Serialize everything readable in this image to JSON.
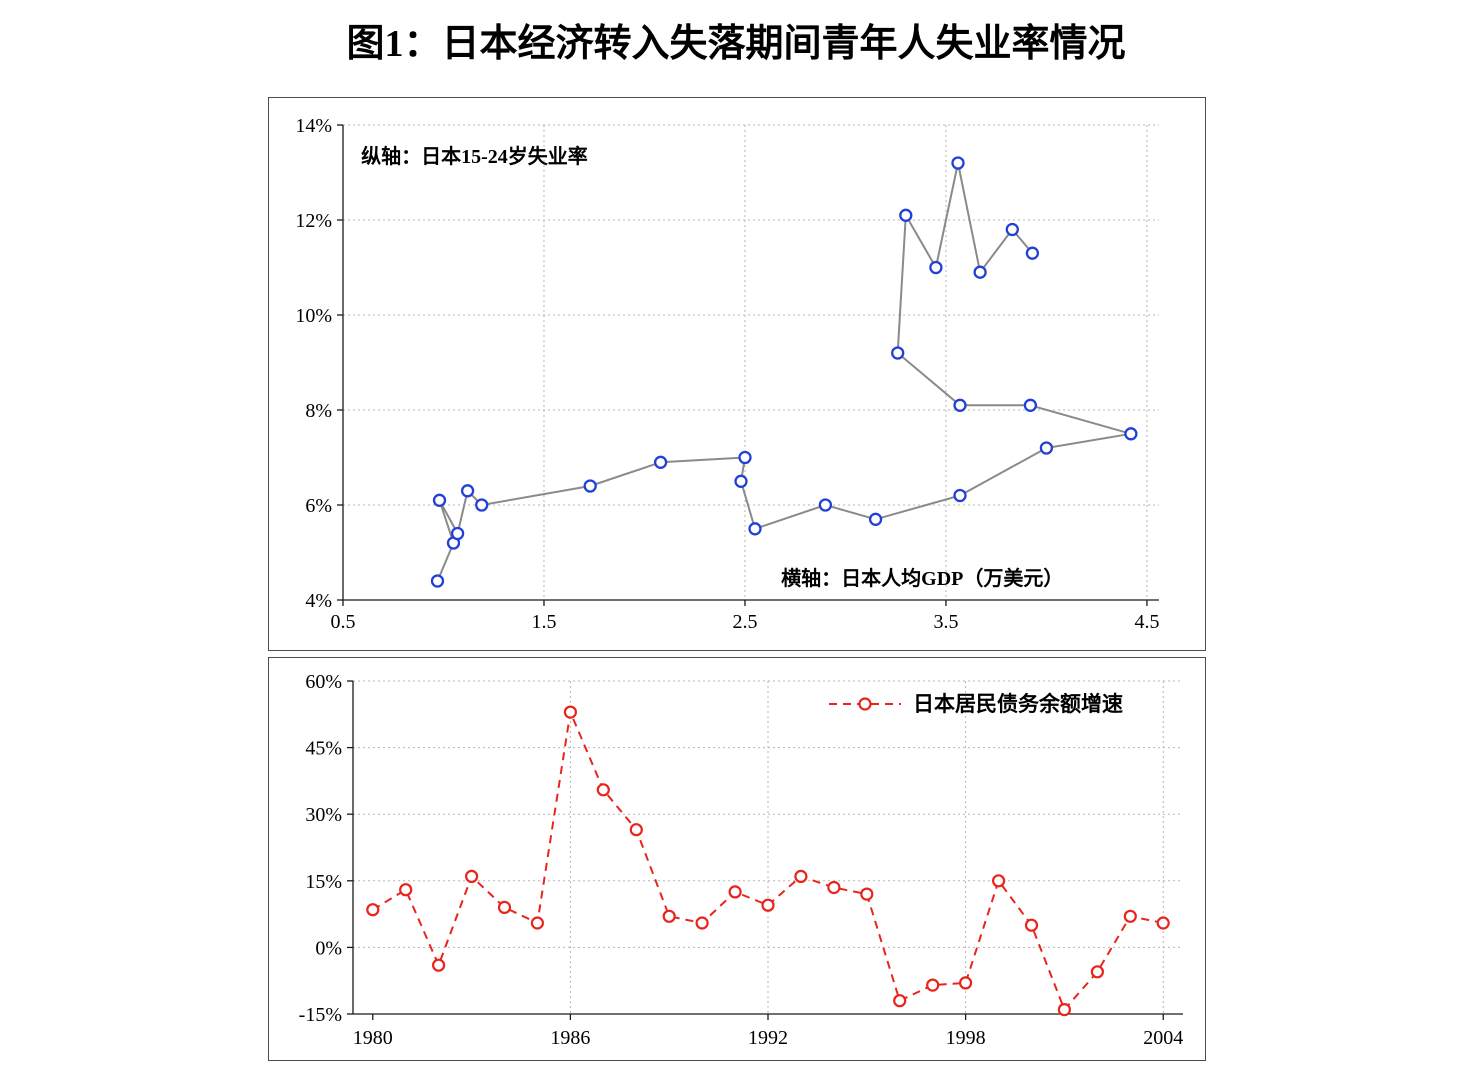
{
  "title": "图1：日本经济转入失落期间青年人失业率情况",
  "chart_data": [
    {
      "type": "scatter",
      "name": "youth-unemployment-vs-gdp-per-capita",
      "annotations": {
        "y_axis_note": "纵轴：日本15-24岁失业率",
        "x_axis_note": "横轴：日本人均GDP（万美元）"
      },
      "x_axis": {
        "min": 0.5,
        "max": 4.5,
        "ticks": [
          0.5,
          1.5,
          2.5,
          3.5,
          4.5
        ],
        "tick_labels": [
          "0.5",
          "1.5",
          "2.5",
          "3.5",
          "4.5"
        ]
      },
      "y_axis": {
        "min": 4,
        "max": 14,
        "ticks": [
          4,
          6,
          8,
          10,
          12,
          14
        ],
        "tick_labels": [
          "4%",
          "6%",
          "8%",
          "10%",
          "12%",
          "14%"
        ]
      },
      "grid": "dotted",
      "series": [
        {
          "line_color": "#8a8a8a",
          "marker": "circle-open",
          "marker_color": "#2141d6",
          "points": [
            [
              0.97,
              4.4
            ],
            [
              1.05,
              5.2
            ],
            [
              0.98,
              6.1
            ],
            [
              1.07,
              5.4
            ],
            [
              1.12,
              6.3
            ],
            [
              1.19,
              6.0
            ],
            [
              1.73,
              6.4
            ],
            [
              2.08,
              6.9
            ],
            [
              2.5,
              7.0
            ],
            [
              2.48,
              6.5
            ],
            [
              2.55,
              5.5
            ],
            [
              2.9,
              6.0
            ],
            [
              3.15,
              5.7
            ],
            [
              3.57,
              6.2
            ],
            [
              4.0,
              7.2
            ],
            [
              4.42,
              7.5
            ],
            [
              3.92,
              8.1
            ],
            [
              3.57,
              8.1
            ],
            [
              3.26,
              9.2
            ],
            [
              3.3,
              12.1
            ],
            [
              3.45,
              11.0
            ],
            [
              3.56,
              13.2
            ],
            [
              3.67,
              10.9
            ],
            [
              3.83,
              11.8
            ],
            [
              3.93,
              11.3
            ]
          ]
        }
      ]
    },
    {
      "type": "line",
      "name": "household-debt-balance-growth",
      "legend": {
        "label": "日本居民债务余额增速",
        "position": "top-right"
      },
      "x_axis": {
        "ticks": [
          1980,
          1986,
          1992,
          1998,
          2004
        ],
        "tick_labels": [
          "1980",
          "1986",
          "1992",
          "1998",
          "2004"
        ]
      },
      "y_axis": {
        "min": -15,
        "max": 60,
        "ticks": [
          60,
          45,
          30,
          15,
          0,
          -15
        ],
        "tick_labels": [
          "60%",
          "45%",
          "30%",
          "15%",
          "0%",
          "-15%"
        ]
      },
      "grid": "dotted",
      "series": [
        {
          "color": "#e8241c",
          "line_style": "dashed",
          "marker": "circle-open",
          "x": [
            1980,
            1981,
            1982,
            1983,
            1984,
            1985,
            1986,
            1987,
            1988,
            1989,
            1990,
            1991,
            1992,
            1993,
            1994,
            1995,
            1996,
            1997,
            1998,
            1999,
            2000,
            2001,
            2002,
            2003,
            2004
          ],
          "values": [
            8.5,
            13,
            -4,
            16,
            9,
            5.5,
            53,
            35.5,
            26.5,
            7,
            5.5,
            12.5,
            9.5,
            16,
            13.5,
            12,
            -12,
            -8.5,
            -8,
            15,
            5,
            -14,
            -5.5,
            7,
            5.5
          ]
        }
      ]
    }
  ]
}
